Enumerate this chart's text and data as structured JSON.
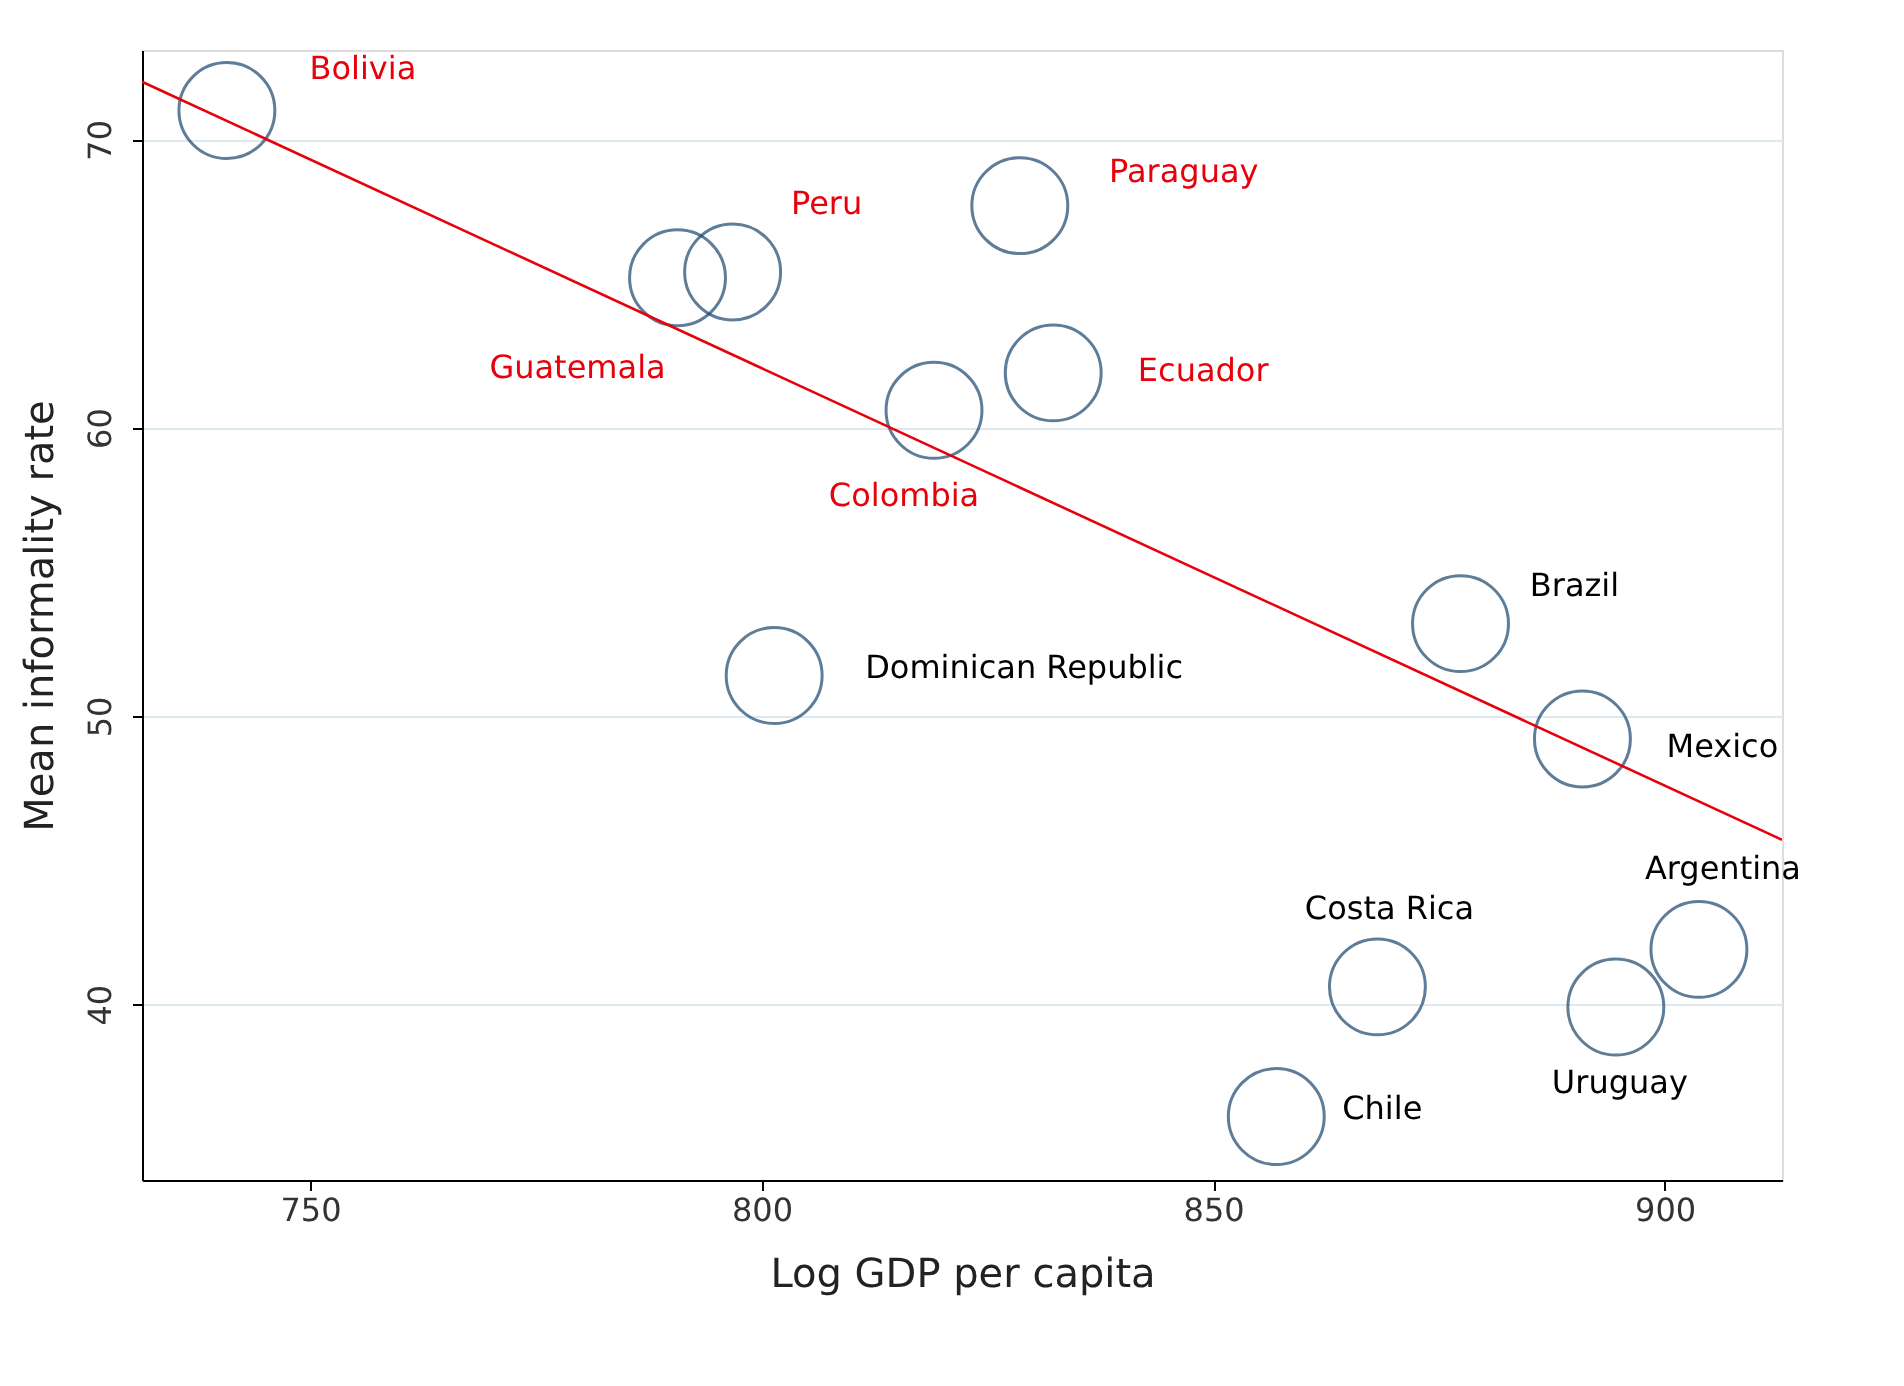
{
  "chart_data": {
    "type": "bubble",
    "xlabel": "Log GDP per capita",
    "ylabel": "Mean informality rate",
    "xlim": [
      731.4,
      913
    ],
    "ylim": [
      33.9,
      73.1
    ],
    "xticks": [
      750,
      800,
      850,
      900
    ],
    "yticks": [
      40,
      50,
      60,
      70
    ],
    "grid": "y",
    "series": [
      {
        "color": "#1a476f",
        "marker": "circle",
        "x": [
          740.8,
          790.7,
          796.8,
          828.6,
          832.3,
          819.1
        ],
        "values": [
          71.0,
          65.2,
          65.4,
          67.7,
          61.9,
          60.6
        ],
        "sizes": [
          1,
          1,
          1,
          1,
          1,
          1
        ],
        "value_labels": [
          "Bolivia",
          "Guatemala",
          "Peru",
          "Paraguay",
          "Ecuador",
          "Colombia"
        ]
      },
      {
        "color": "#1a476f",
        "marker": "circle",
        "x": [
          801.4,
          877.4,
          890.9,
          903.8,
          868.2,
          894.6,
          857.0
        ],
        "values": [
          51.4,
          53.2,
          49.2,
          41.9,
          40.6,
          39.9,
          36.1
        ],
        "sizes": [
          1,
          1,
          1,
          1,
          1,
          1,
          1
        ],
        "value_labels": [
          "Dominican Republic",
          "Brazil",
          "Mexico",
          "Argentina",
          "Costa Rica",
          "Uruguay",
          "Chile"
        ]
      },
      {
        "type": "line",
        "marker": "none",
        "color": "#e8000b",
        "x": [
          731.4,
          913
        ],
        "values": [
          72.0,
          45.7
        ]
      }
    ]
  }
}
